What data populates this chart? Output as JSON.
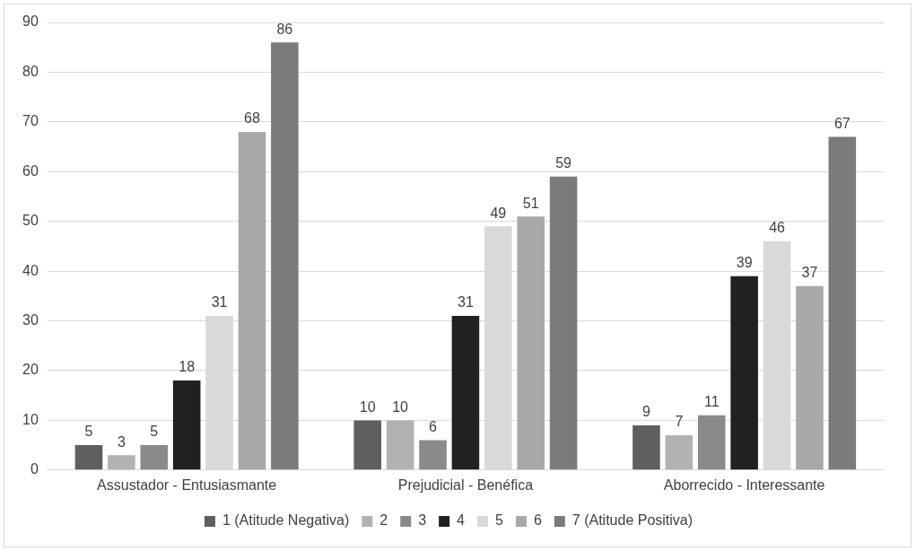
{
  "chart_data": {
    "type": "bar",
    "categories": [
      "Assustador - Entusiasmante",
      "Prejudicial - Benéfica",
      "Aborrecido - Interessante"
    ],
    "series": [
      {
        "name": "1 (Atitude Negativa)",
        "color": "#5f5f5f",
        "values": [
          5,
          10,
          9
        ]
      },
      {
        "name": "2",
        "color": "#b2b2b2",
        "values": [
          3,
          10,
          7
        ]
      },
      {
        "name": "3",
        "color": "#8a8a8a",
        "values": [
          5,
          6,
          11
        ]
      },
      {
        "name": "4",
        "color": "#212121",
        "values": [
          18,
          31,
          39
        ]
      },
      {
        "name": "5",
        "color": "#d9d9d9",
        "values": [
          31,
          49,
          46
        ]
      },
      {
        "name": "6",
        "color": "#a8a8a8",
        "values": [
          68,
          51,
          37
        ]
      },
      {
        "name": "7 (Atitude Positiva)",
        "color": "#7b7b7b",
        "values": [
          86,
          59,
          67
        ]
      }
    ],
    "ylim": [
      0,
      90
    ],
    "yticks": [
      0,
      10,
      20,
      30,
      40,
      50,
      60,
      70,
      80,
      90
    ],
    "grid": "y",
    "legend": "bottom",
    "data_labels": true
  }
}
